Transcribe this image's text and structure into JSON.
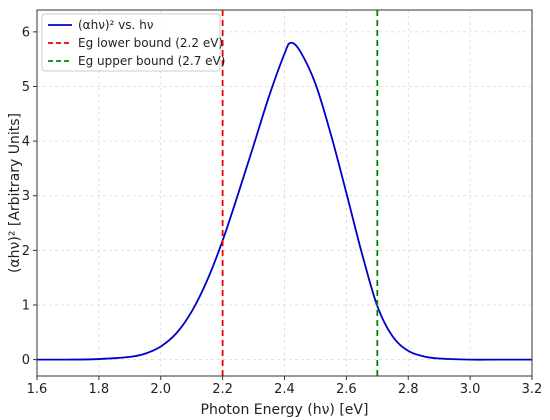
{
  "chart_data": {
    "type": "line",
    "title": "",
    "xlabel": "Photon Energy (hν) [eV]",
    "ylabel": "(αhν)² [Arbitrary Units]",
    "xlim": [
      1.6,
      3.2
    ],
    "ylim": [
      -0.3,
      6.4
    ],
    "xticks": [
      1.6,
      1.8,
      2.0,
      2.2,
      2.4,
      2.6,
      2.8,
      3.0,
      3.2
    ],
    "xtick_labels": [
      "1.6",
      "1.8",
      "2.0",
      "2.2",
      "2.4",
      "2.6",
      "2.8",
      "3.0",
      "3.2"
    ],
    "yticks": [
      0,
      1,
      2,
      3,
      4,
      5,
      6
    ],
    "ytick_labels": [
      "0",
      "1",
      "2",
      "3",
      "4",
      "5",
      "6"
    ],
    "grid": true,
    "legend_position": "top-left",
    "series": [
      {
        "name": "(αhν)² vs. hν",
        "color": "#0000cc",
        "style": "solid",
        "x": [
          1.6,
          1.7,
          1.8,
          1.9,
          1.95,
          2.0,
          2.05,
          2.1,
          2.15,
          2.2,
          2.25,
          2.3,
          2.35,
          2.4,
          2.42,
          2.45,
          2.5,
          2.55,
          2.6,
          2.65,
          2.7,
          2.75,
          2.8,
          2.85,
          2.9,
          3.0,
          3.1,
          3.2
        ],
        "y": [
          0.0,
          0.0,
          0.01,
          0.05,
          0.11,
          0.24,
          0.48,
          0.88,
          1.45,
          2.18,
          3.03,
          3.92,
          4.82,
          5.6,
          5.8,
          5.65,
          5.05,
          4.12,
          3.05,
          1.95,
          0.98,
          0.42,
          0.16,
          0.06,
          0.02,
          0.0,
          0.0,
          0.0
        ]
      },
      {
        "name": "Eg lower bound (2.2 eV)",
        "color": "#ee0000",
        "style": "dashed",
        "vline_x": 2.2
      },
      {
        "name": "Eg upper bound (2.7 eV)",
        "color": "#008800",
        "style": "dashed",
        "vline_x": 2.7
      }
    ]
  }
}
